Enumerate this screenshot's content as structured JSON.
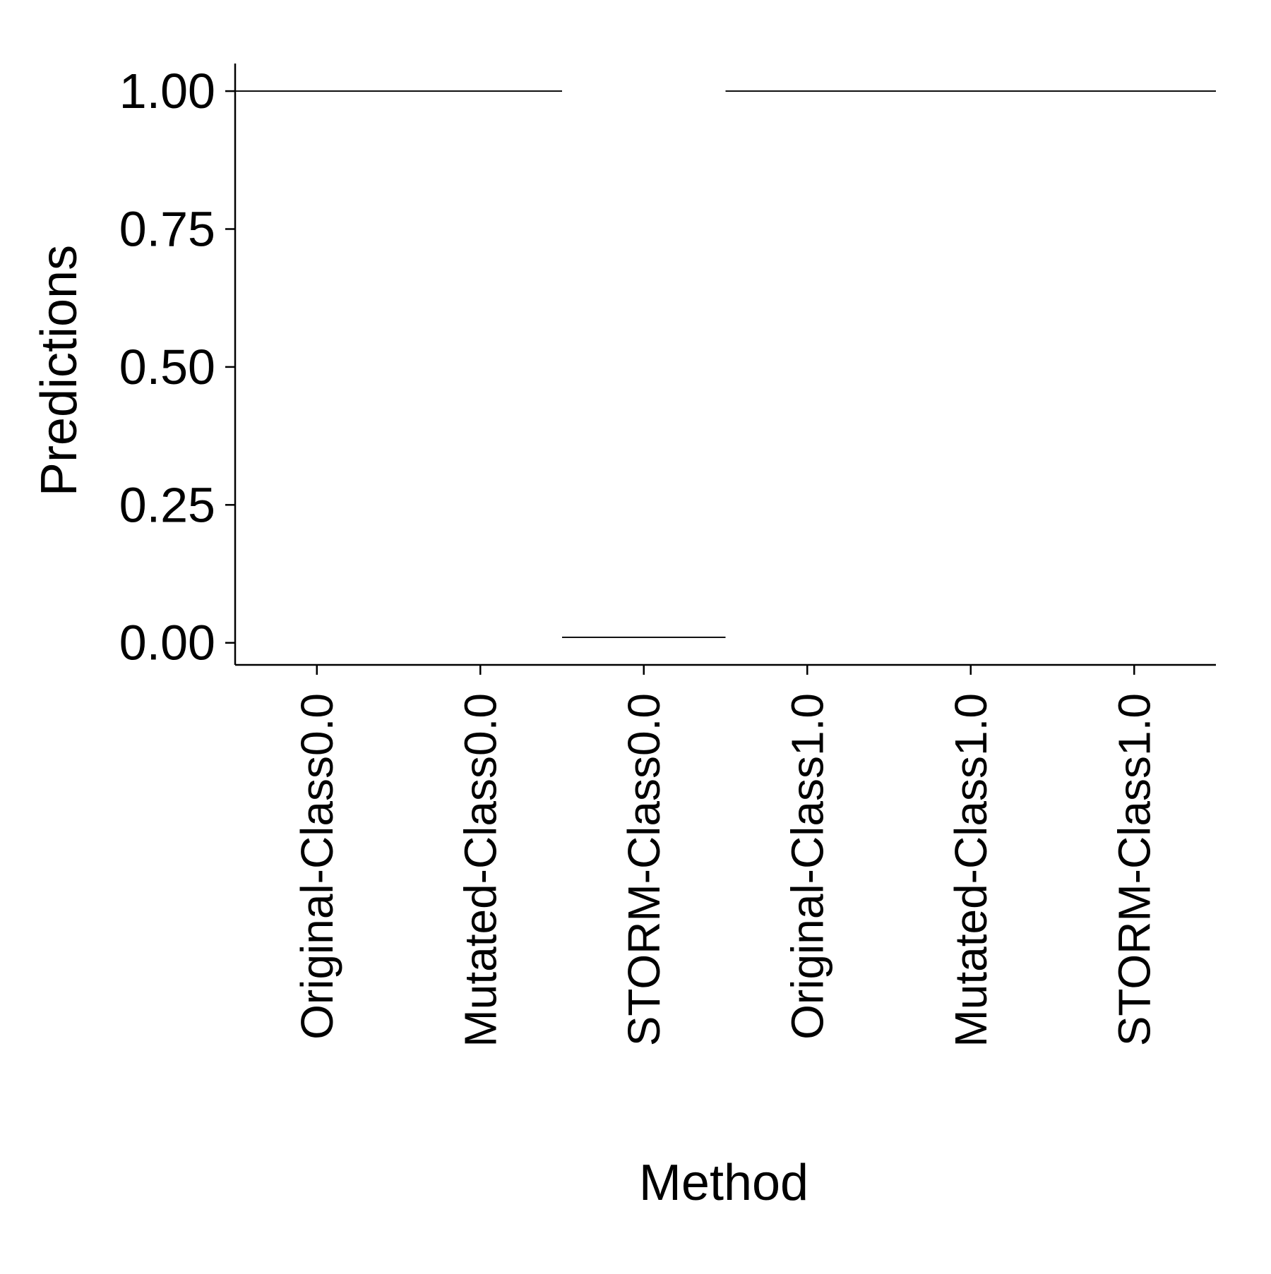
{
  "chart_data": {
    "type": "box",
    "xlabel": "Method",
    "ylabel": "Predictions",
    "ylim": [
      -0.04,
      1.05
    ],
    "y_ticks": [
      0.0,
      0.25,
      0.5,
      0.75,
      1.0
    ],
    "y_tick_labels": [
      "0.00",
      "0.25",
      "0.50",
      "0.75",
      "1.00"
    ],
    "categories": [
      "Original-Class0.0",
      "Mutated-Class0.0",
      "STORM-Class0.0",
      "Original-Class1.0",
      "Mutated-Class1.0",
      "STORM-Class1.0"
    ],
    "values": [
      1.0,
      1.0,
      0.01,
      1.0,
      1.0,
      1.0
    ],
    "grid": false,
    "legend": "none",
    "colors": {
      "axis": "#000000",
      "mark": "#000000",
      "background": "#ffffff"
    }
  }
}
